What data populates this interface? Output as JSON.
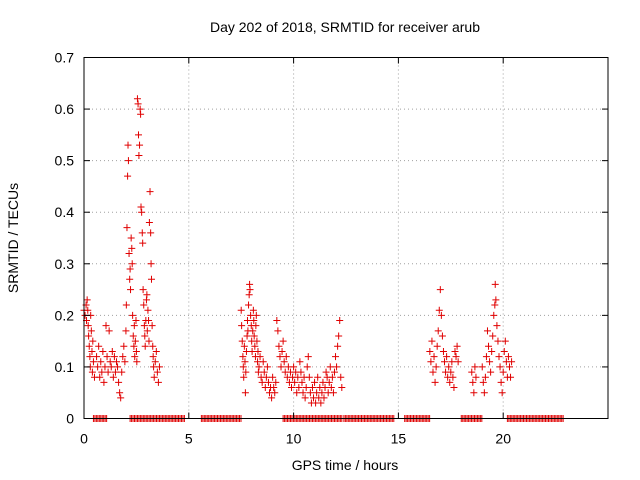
{
  "chart_data": {
    "type": "scatter",
    "title": "Day 202 of 2018, SRMTID for receiver arub",
    "xlabel": "GPS time / hours",
    "ylabel": "SRMTID / TECUs",
    "xlim": [
      0,
      25
    ],
    "ylim": [
      0,
      0.7
    ],
    "x_ticks": [
      0,
      5,
      10,
      15,
      20
    ],
    "x_tick_labels": [
      "0",
      "5",
      "10",
      "15",
      "20"
    ],
    "y_ticks": [
      0,
      0.1,
      0.2,
      0.3,
      0.4,
      0.5,
      0.6,
      0.7
    ],
    "y_tick_labels": [
      "0",
      "0.1",
      "0.2",
      "0.3",
      "0.4",
      "0.5",
      "0.6",
      "0.7"
    ],
    "grid": true,
    "marker": "plus",
    "marker_color": "#e00000",
    "series": [
      {
        "name": "SRMTID",
        "points": [
          [
            0.0,
            0.21
          ],
          [
            0.05,
            0.2
          ],
          [
            0.1,
            0.22
          ],
          [
            0.12,
            0.19
          ],
          [
            0.15,
            0.23
          ],
          [
            0.18,
            0.21
          ],
          [
            0.2,
            0.18
          ],
          [
            0.22,
            0.16
          ],
          [
            0.25,
            0.14
          ],
          [
            0.28,
            0.12
          ],
          [
            0.3,
            0.1
          ],
          [
            0.32,
            0.2
          ],
          [
            0.35,
            0.17
          ],
          [
            0.38,
            0.13
          ],
          [
            0.4,
            0.09
          ],
          [
            0.42,
            0.15
          ],
          [
            0.45,
            0.11
          ],
          [
            0.5,
            0.08
          ],
          [
            0.6,
            0.12
          ],
          [
            0.65,
            0.1
          ],
          [
            0.7,
            0.14
          ],
          [
            0.75,
            0.08
          ],
          [
            0.8,
            0.11
          ],
          [
            0.85,
            0.09
          ],
          [
            0.9,
            0.13
          ],
          [
            0.95,
            0.07
          ],
          [
            1.0,
            0.1
          ],
          [
            1.05,
            0.18
          ],
          [
            1.1,
            0.12
          ],
          [
            1.15,
            0.09
          ],
          [
            1.2,
            0.17
          ],
          [
            1.25,
            0.11
          ],
          [
            1.3,
            0.1
          ],
          [
            1.35,
            0.13
          ],
          [
            1.4,
            0.08
          ],
          [
            1.45,
            0.12
          ],
          [
            1.5,
            0.09
          ],
          [
            1.55,
            0.11
          ],
          [
            1.6,
            0.1
          ],
          [
            1.65,
            0.07
          ],
          [
            1.7,
            0.05
          ],
          [
            1.75,
            0.04
          ],
          [
            1.8,
            0.09
          ],
          [
            1.85,
            0.12
          ],
          [
            1.9,
            0.14
          ],
          [
            1.95,
            0.11
          ],
          [
            2.0,
            0.17
          ],
          [
            2.02,
            0.22
          ],
          [
            2.05,
            0.37
          ],
          [
            2.08,
            0.47
          ],
          [
            2.1,
            0.53
          ],
          [
            2.12,
            0.5
          ],
          [
            2.15,
            0.32
          ],
          [
            2.18,
            0.27
          ],
          [
            2.2,
            0.29
          ],
          [
            2.22,
            0.25
          ],
          [
            2.25,
            0.35
          ],
          [
            2.28,
            0.33
          ],
          [
            2.3,
            0.3
          ],
          [
            2.32,
            0.2
          ],
          [
            2.35,
            0.16
          ],
          [
            2.38,
            0.14
          ],
          [
            2.4,
            0.18
          ],
          [
            2.42,
            0.12
          ],
          [
            2.45,
            0.15
          ],
          [
            2.48,
            0.19
          ],
          [
            2.5,
            0.13
          ],
          [
            2.52,
            0.11
          ],
          [
            2.55,
            0.62
          ],
          [
            2.58,
            0.61
          ],
          [
            2.6,
            0.55
          ],
          [
            2.62,
            0.51
          ],
          [
            2.65,
            0.53
          ],
          [
            2.68,
            0.6
          ],
          [
            2.7,
            0.59
          ],
          [
            2.72,
            0.41
          ],
          [
            2.75,
            0.4
          ],
          [
            2.78,
            0.36
          ],
          [
            2.8,
            0.34
          ],
          [
            2.82,
            0.25
          ],
          [
            2.85,
            0.22
          ],
          [
            2.88,
            0.18
          ],
          [
            2.9,
            0.16
          ],
          [
            2.92,
            0.14
          ],
          [
            2.95,
            0.19
          ],
          [
            2.98,
            0.23
          ],
          [
            3.0,
            0.24
          ],
          [
            3.02,
            0.17
          ],
          [
            3.05,
            0.21
          ],
          [
            3.08,
            0.19
          ],
          [
            3.1,
            0.15
          ],
          [
            3.12,
            0.38
          ],
          [
            3.15,
            0.44
          ],
          [
            3.18,
            0.36
          ],
          [
            3.2,
            0.3
          ],
          [
            3.22,
            0.27
          ],
          [
            3.25,
            0.18
          ],
          [
            3.28,
            0.14
          ],
          [
            3.3,
            0.12
          ],
          [
            3.32,
            0.1
          ],
          [
            3.35,
            0.08
          ],
          [
            3.4,
            0.11
          ],
          [
            3.45,
            0.13
          ],
          [
            3.5,
            0.09
          ],
          [
            3.55,
            0.07
          ],
          [
            3.6,
            0.1
          ],
          [
            7.5,
            0.21
          ],
          [
            7.52,
            0.18
          ],
          [
            7.55,
            0.15
          ],
          [
            7.58,
            0.12
          ],
          [
            7.6,
            0.1
          ],
          [
            7.62,
            0.08
          ],
          [
            7.65,
            0.14
          ],
          [
            7.68,
            0.11
          ],
          [
            7.7,
            0.05
          ],
          [
            7.72,
            0.09
          ],
          [
            7.75,
            0.13
          ],
          [
            7.78,
            0.16
          ],
          [
            7.8,
            0.19
          ],
          [
            7.82,
            0.17
          ],
          [
            7.85,
            0.22
          ],
          [
            7.88,
            0.24
          ],
          [
            7.9,
            0.26
          ],
          [
            7.92,
            0.25
          ],
          [
            7.95,
            0.2
          ],
          [
            7.98,
            0.18
          ],
          [
            8.0,
            0.15
          ],
          [
            8.02,
            0.13
          ],
          [
            8.05,
            0.17
          ],
          [
            8.08,
            0.21
          ],
          [
            8.1,
            0.19
          ],
          [
            8.12,
            0.16
          ],
          [
            8.15,
            0.14
          ],
          [
            8.18,
            0.12
          ],
          [
            8.2,
            0.18
          ],
          [
            8.22,
            0.2
          ],
          [
            8.25,
            0.15
          ],
          [
            8.28,
            0.11
          ],
          [
            8.3,
            0.13
          ],
          [
            8.32,
            0.09
          ],
          [
            8.35,
            0.1
          ],
          [
            8.4,
            0.12
          ],
          [
            8.45,
            0.08
          ],
          [
            8.5,
            0.07
          ],
          [
            8.55,
            0.11
          ],
          [
            8.6,
            0.09
          ],
          [
            8.65,
            0.06
          ],
          [
            8.7,
            0.08
          ],
          [
            8.75,
            0.1
          ],
          [
            8.8,
            0.07
          ],
          [
            8.85,
            0.05
          ],
          [
            8.9,
            0.06
          ],
          [
            8.95,
            0.04
          ],
          [
            9.0,
            0.08
          ],
          [
            9.05,
            0.06
          ],
          [
            9.1,
            0.05
          ],
          [
            9.15,
            0.07
          ],
          [
            9.2,
            0.19
          ],
          [
            9.25,
            0.17
          ],
          [
            9.3,
            0.14
          ],
          [
            9.35,
            0.12
          ],
          [
            9.4,
            0.1
          ],
          [
            9.45,
            0.13
          ],
          [
            9.5,
            0.15
          ],
          [
            9.55,
            0.11
          ],
          [
            9.6,
            0.09
          ],
          [
            9.65,
            0.12
          ],
          [
            9.7,
            0.08
          ],
          [
            9.75,
            0.1
          ],
          [
            9.8,
            0.07
          ],
          [
            9.85,
            0.09
          ],
          [
            9.9,
            0.06
          ],
          [
            9.95,
            0.08
          ],
          [
            10.0,
            0.1
          ],
          [
            10.05,
            0.07
          ],
          [
            10.1,
            0.09
          ],
          [
            10.15,
            0.05
          ],
          [
            10.2,
            0.08
          ],
          [
            10.25,
            0.06
          ],
          [
            10.3,
            0.11
          ],
          [
            10.35,
            0.09
          ],
          [
            10.4,
            0.07
          ],
          [
            10.45,
            0.05
          ],
          [
            10.5,
            0.08
          ],
          [
            10.55,
            0.04
          ],
          [
            10.6,
            0.06
          ],
          [
            10.65,
            0.1
          ],
          [
            10.7,
            0.12
          ],
          [
            10.75,
            0.08
          ],
          [
            10.8,
            0.05
          ],
          [
            10.85,
            0.03
          ],
          [
            10.9,
            0.06
          ],
          [
            10.95,
            0.04
          ],
          [
            11.0,
            0.07
          ],
          [
            11.05,
            0.03
          ],
          [
            11.1,
            0.05
          ],
          [
            11.15,
            0.08
          ],
          [
            11.2,
            0.04
          ],
          [
            11.25,
            0.06
          ],
          [
            11.3,
            0.03
          ],
          [
            11.35,
            0.05
          ],
          [
            11.4,
            0.07
          ],
          [
            11.45,
            0.04
          ],
          [
            11.5,
            0.06
          ],
          [
            11.55,
            0.09
          ],
          [
            11.6,
            0.08
          ],
          [
            11.65,
            0.05
          ],
          [
            11.7,
            0.07
          ],
          [
            11.75,
            0.1
          ],
          [
            11.8,
            0.06
          ],
          [
            11.85,
            0.08
          ],
          [
            11.9,
            0.05
          ],
          [
            11.95,
            0.09
          ],
          [
            12.0,
            0.12
          ],
          [
            12.05,
            0.1
          ],
          [
            12.1,
            0.14
          ],
          [
            12.15,
            0.16
          ],
          [
            12.2,
            0.19
          ],
          [
            12.25,
            0.08
          ],
          [
            12.3,
            0.06
          ],
          [
            16.5,
            0.13
          ],
          [
            16.55,
            0.11
          ],
          [
            16.6,
            0.15
          ],
          [
            16.65,
            0.09
          ],
          [
            16.7,
            0.12
          ],
          [
            16.75,
            0.07
          ],
          [
            16.8,
            0.1
          ],
          [
            16.85,
            0.14
          ],
          [
            16.9,
            0.17
          ],
          [
            16.95,
            0.21
          ],
          [
            17.0,
            0.25
          ],
          [
            17.05,
            0.2
          ],
          [
            17.1,
            0.16
          ],
          [
            17.15,
            0.13
          ],
          [
            17.2,
            0.11
          ],
          [
            17.25,
            0.09
          ],
          [
            17.3,
            0.12
          ],
          [
            17.35,
            0.08
          ],
          [
            17.4,
            0.1
          ],
          [
            17.45,
            0.07
          ],
          [
            17.5,
            0.09
          ],
          [
            17.55,
            0.11
          ],
          [
            17.6,
            0.08
          ],
          [
            17.65,
            0.06
          ],
          [
            17.7,
            0.13
          ],
          [
            17.75,
            0.12
          ],
          [
            17.8,
            0.14
          ],
          [
            17.85,
            0.11
          ],
          [
            18.5,
            0.09
          ],
          [
            18.55,
            0.07
          ],
          [
            18.6,
            0.05
          ],
          [
            18.65,
            0.1
          ],
          [
            18.7,
            0.08
          ],
          [
            19.0,
            0.1
          ],
          [
            19.05,
            0.07
          ],
          [
            19.1,
            0.05
          ],
          [
            19.15,
            0.08
          ],
          [
            19.2,
            0.12
          ],
          [
            19.25,
            0.17
          ],
          [
            19.3,
            0.14
          ],
          [
            19.35,
            0.11
          ],
          [
            19.4,
            0.09
          ],
          [
            19.45,
            0.13
          ],
          [
            19.5,
            0.16
          ],
          [
            19.55,
            0.2
          ],
          [
            19.6,
            0.22
          ],
          [
            19.62,
            0.26
          ],
          [
            19.65,
            0.23
          ],
          [
            19.7,
            0.18
          ],
          [
            19.75,
            0.15
          ],
          [
            19.8,
            0.12
          ],
          [
            19.85,
            0.1
          ],
          [
            19.9,
            0.07
          ],
          [
            19.95,
            0.05
          ],
          [
            20.0,
            0.09
          ],
          [
            20.05,
            0.13
          ],
          [
            20.1,
            0.15
          ],
          [
            20.15,
            0.11
          ],
          [
            20.2,
            0.08
          ],
          [
            20.25,
            0.12
          ],
          [
            20.3,
            0.1
          ],
          [
            20.35,
            0.08
          ],
          [
            20.4,
            0.11
          ]
        ],
        "zero_intervals": [
          [
            0.45,
            1.1
          ],
          [
            2.2,
            4.8
          ],
          [
            5.6,
            7.5
          ],
          [
            9.5,
            12.3
          ],
          [
            12.4,
            14.8
          ],
          [
            15.3,
            16.5
          ],
          [
            18.0,
            19.0
          ],
          [
            20.2,
            22.9
          ]
        ]
      }
    ]
  }
}
